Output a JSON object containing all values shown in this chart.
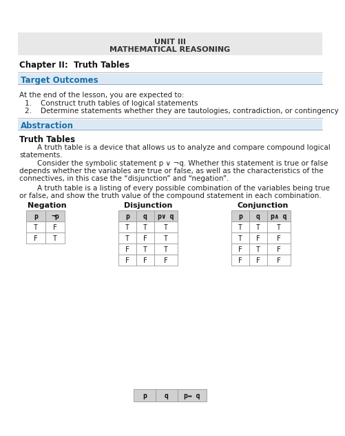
{
  "title_line1": "UNIT III",
  "title_line2": "MATHEMATICAL REASONING",
  "chapter": "Chapter II:  Truth Tables",
  "section1_label": "Target Outcomes",
  "section1_text_intro": "At the end of the lesson, you are expected to:",
  "section1_item1": "1.    Construct truth tables of logical statements",
  "section1_item2": "2.    Determine statements whether they are tautologies, contradiction, or contingency",
  "section2_label": "Abstraction",
  "subsection_title": "Truth Tables",
  "para1a": "        A truth table is a device that allows us to analyze and compare compound logical",
  "para1b": "statements.",
  "para2a": "        Consider the symbolic statement p ∨ ¬q. Whether this statement is true or false",
  "para2b": "depends whether the variables are true or false, as well as the characteristics of the",
  "para2c": "connectives, in this case the “disjunction” and “negation”.",
  "para3a": "        A truth table is a listing of every possible combination of the variables being true",
  "para3b": "or false, and show the truth value of the compound statement in each combination.",
  "negation_title": "Negation",
  "negation_headers": [
    "p",
    "¬p"
  ],
  "negation_data": [
    [
      "T",
      "F"
    ],
    [
      "F",
      "T"
    ]
  ],
  "disjunction_title": "Disjunction",
  "disjunction_headers": [
    "p",
    "q",
    "p∨ q"
  ],
  "disjunction_data": [
    [
      "T",
      "T",
      "T"
    ],
    [
      "T",
      "F",
      "T"
    ],
    [
      "F",
      "T",
      "T"
    ],
    [
      "F",
      "F",
      "F"
    ]
  ],
  "conjunction_title": "Conjunction",
  "conjunction_headers": [
    "p",
    "q",
    "p∧ q"
  ],
  "conjunction_data": [
    [
      "T",
      "T",
      "T"
    ],
    [
      "T",
      "F",
      "F"
    ],
    [
      "F",
      "T",
      "F"
    ],
    [
      "F",
      "F",
      "F"
    ]
  ],
  "biconditional_headers": [
    "p",
    "q",
    "p↔ q"
  ],
  "section_bg": "#dce9f5",
  "section_text_color": "#1a6fa8",
  "title_bg": "#e8e8e8",
  "page_bg": "#ffffff",
  "table_header_bg": "#d0d0d0",
  "table_border": "#999999"
}
